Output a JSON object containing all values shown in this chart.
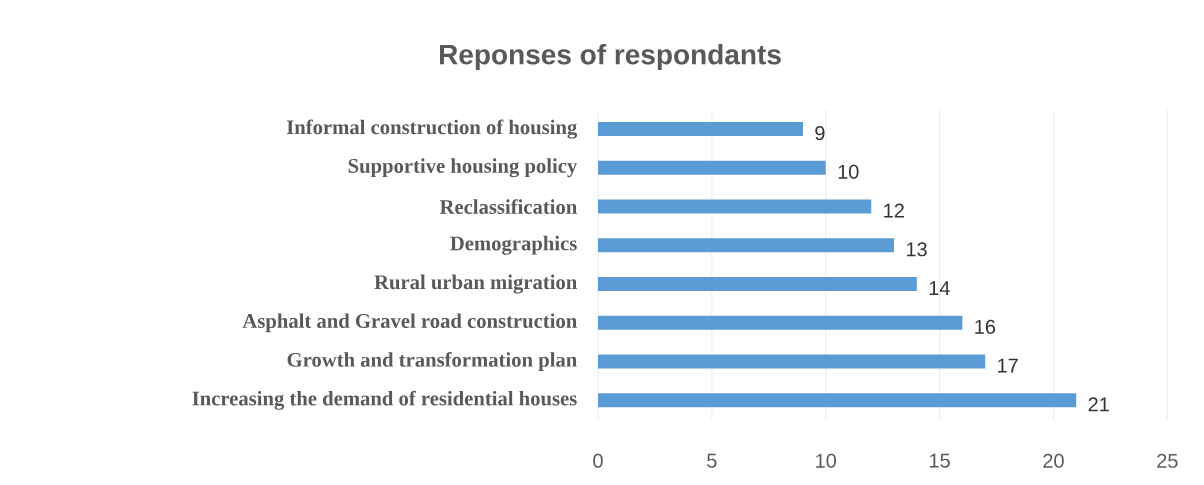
{
  "chart_data": {
    "type": "bar",
    "orientation": "horizontal",
    "title": "Reponses of respondants",
    "categories": [
      "Informal construction of housing",
      "Supportive housing policy",
      "Reclassification",
      "Demographics",
      "Rural urban migration",
      "Asphalt and Gravel road construction",
      "Growth and transformation plan",
      "Increasing the demand of residential houses"
    ],
    "values": [
      9,
      10,
      12,
      13,
      14,
      16,
      17,
      21
    ],
    "color": "#5b9bd5",
    "xlim": [
      0,
      25
    ],
    "xticks": [
      0,
      5,
      10,
      15,
      20,
      25
    ],
    "grid": "x",
    "data_labels": true
  }
}
